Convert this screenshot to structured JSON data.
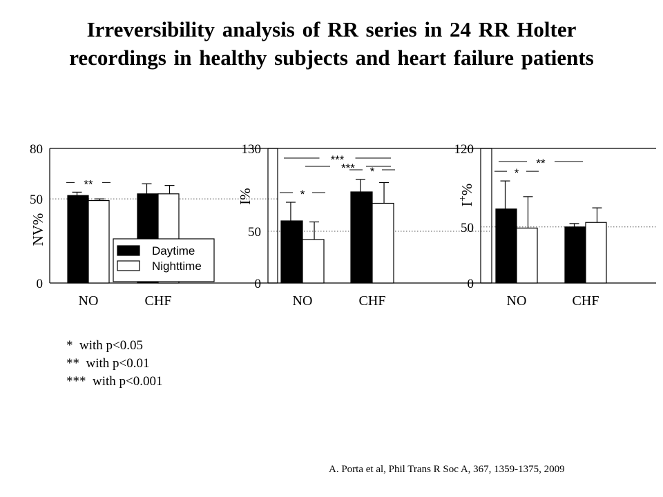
{
  "title": {
    "line1": "Irreversibility  analysis of RR series in 24 RR Holter",
    "line2": "recordings in healthy subjects and heart failure patients"
  },
  "significance_notes": [
    "*  with p<0.05",
    "**  with p<0.01",
    "***  with p<0.001"
  ],
  "citation": "A. Porta et al, Phil Trans R Soc A, 367, 1359-1375, 2009",
  "colors": {
    "daytime": "#000000",
    "nighttime": "#ffffff",
    "reference_line": "#555555"
  },
  "chart_data": [
    {
      "type": "bar",
      "ylabel": "NV%",
      "ylim": [
        0,
        80
      ],
      "yticks": [
        0,
        50,
        80
      ],
      "reference_y": 50,
      "categories": [
        "NO",
        "CHF"
      ],
      "series": [
        {
          "name": "Daytime",
          "values": [
            52,
            53
          ],
          "errors": [
            2,
            6
          ]
        },
        {
          "name": "Nighttime",
          "values": [
            49,
            53
          ],
          "errors": [
            1,
            5
          ]
        }
      ],
      "legend": {
        "placement": "bottom-right",
        "entries": [
          "Daytime",
          "Nighttime"
        ]
      },
      "significance": [
        {
          "label": "**",
          "category": "NO",
          "between": [
            "Daytime",
            "Nighttime"
          ]
        }
      ]
    },
    {
      "type": "bar",
      "ylabel": "I%",
      "ylim": [
        0,
        130
      ],
      "yticks": [
        0,
        50,
        130
      ],
      "reference_y": 50,
      "categories": [
        "NO",
        "CHF"
      ],
      "series": [
        {
          "name": "Daytime",
          "values": [
            60,
            88
          ],
          "errors": [
            18,
            12
          ]
        },
        {
          "name": "Nighttime",
          "values": [
            42,
            77
          ],
          "errors": [
            17,
            20
          ]
        }
      ],
      "significance": [
        {
          "label": "*",
          "category": "NO",
          "between": [
            "Daytime",
            "Nighttime"
          ]
        },
        {
          "label": "*",
          "category": "CHF",
          "between": [
            "Daytime",
            "Nighttime"
          ]
        },
        {
          "label": "***",
          "between": [
            "NO Nighttime",
            "CHF Nighttime"
          ]
        },
        {
          "label": "***",
          "between": [
            "NO Daytime",
            "CHF Nighttime"
          ]
        }
      ]
    },
    {
      "type": "bar",
      "ylabel": "I+%",
      "ylim": [
        0,
        120
      ],
      "yticks": [
        0,
        50,
        120
      ],
      "reference_y": 50,
      "categories": [
        "NO",
        "CHF"
      ],
      "series": [
        {
          "name": "Daytime",
          "values": [
            66,
            50
          ],
          "errors": [
            25,
            3
          ]
        },
        {
          "name": "Nighttime",
          "values": [
            49,
            54
          ],
          "errors": [
            28,
            13
          ]
        }
      ],
      "significance": [
        {
          "label": "*",
          "category": "NO",
          "between": [
            "Daytime",
            "Nighttime"
          ]
        },
        {
          "label": "**",
          "between": [
            "NO Daytime",
            "CHF Daytime"
          ]
        }
      ]
    }
  ]
}
